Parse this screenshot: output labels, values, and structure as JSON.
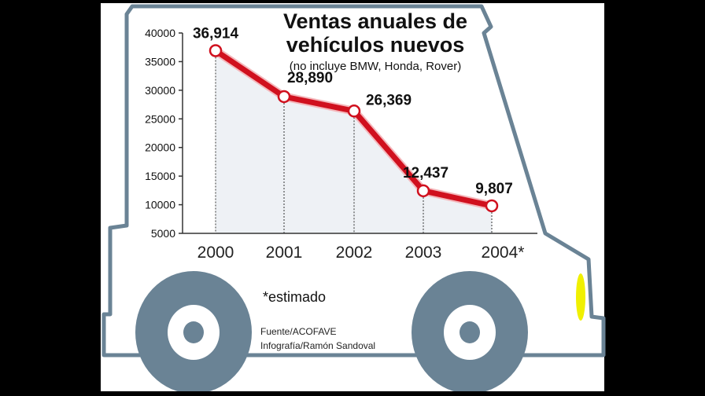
{
  "chart_data": {
    "type": "line",
    "title": "Ventas anuales de vehículos nuevos",
    "title_lines": [
      "Ventas anuales de",
      "vehículos nuevos"
    ],
    "subtitle": "(no incluye BMW, Honda, Rover)",
    "categories": [
      "2000",
      "2001",
      "2002",
      "2003",
      "2004*"
    ],
    "values": [
      36914,
      28890,
      26369,
      12437,
      9807
    ],
    "data_labels": [
      "36,914",
      "28,890",
      "26,369",
      "12,437",
      "9,807"
    ],
    "yticks": [
      "40000",
      "35000",
      "30000",
      "25000",
      "20000",
      "15000",
      "10000",
      "5000"
    ],
    "ylim": [
      5000,
      40000
    ],
    "xlabel": "",
    "ylabel": "",
    "grid": false,
    "line_color": "#d0101e",
    "fill_color": "#eef1f5",
    "note": "*estimado",
    "credits": [
      "Fuente/ACOFAVE",
      "Infografía/Ramón Sandoval"
    ]
  },
  "colors": {
    "car_outline": "#6a8395",
    "wheel": "#6a8395",
    "headlight": "#f0f000"
  }
}
